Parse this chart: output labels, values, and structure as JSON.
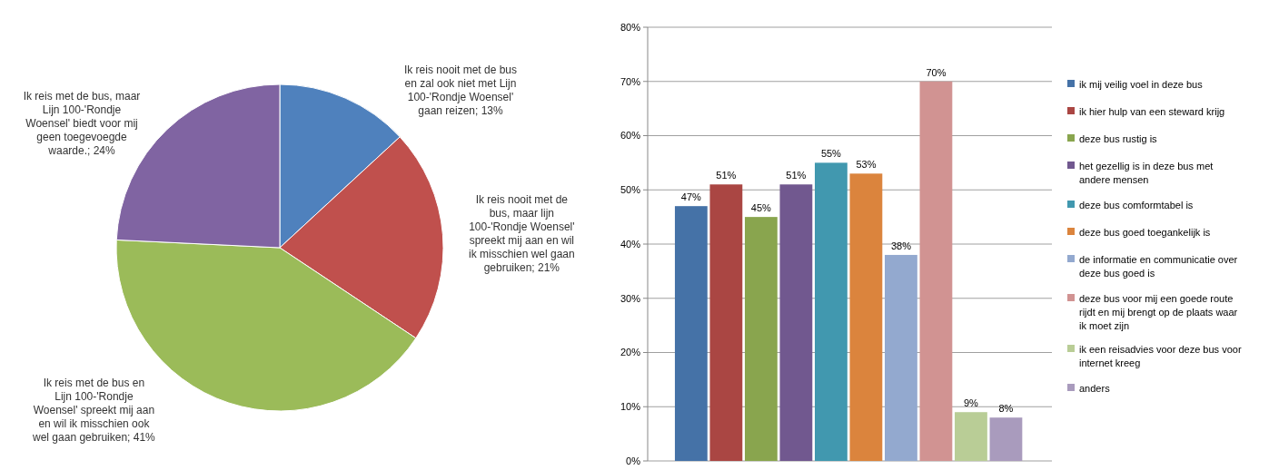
{
  "chart_data": [
    {
      "type": "pie",
      "categories": [
        "Ik reis nooit met de bus en zal ook niet met Lijn 100-'Rondje Woensel' gaan reizen",
        "Ik reis nooit met de bus, maar lijn 100-'Rondje Woensel' spreekt mij aan en wil ik misschien wel gaan gebruiken",
        "Ik reis met de bus en Lijn 100-'Rondje Woensel' spreekt mij aan en wil ik misschien ook wel gaan gebruiken",
        "Ik reis met de bus, maar Lijn 100-'Rondje Woensel' biedt voor mij geen toegevoegde waarde."
      ],
      "values": [
        13,
        21,
        41,
        24
      ],
      "colors": [
        "#4f81bd",
        "#c0504d",
        "#9bbb59",
        "#8064a2"
      ],
      "value_labels": [
        "13%",
        "21%",
        "41%",
        "24%"
      ],
      "legend": false
    },
    {
      "type": "bar",
      "categories": [
        null
      ],
      "series": [
        {
          "name": "ik mij veilig voel in deze bus",
          "color": "#4572a7",
          "values": [
            47
          ]
        },
        {
          "name": "ik hier hulp van een steward krijg",
          "color": "#aa4643",
          "values": [
            51
          ]
        },
        {
          "name": "deze bus rustig is",
          "color": "#89a54e",
          "values": [
            45
          ]
        },
        {
          "name": "het gezellig is in deze bus met andere mensen",
          "color": "#71588f",
          "values": [
            51
          ]
        },
        {
          "name": "deze bus comformtabel is",
          "color": "#4198af",
          "values": [
            55
          ]
        },
        {
          "name": "deze bus goed toegankelijk is",
          "color": "#db843d",
          "values": [
            53
          ]
        },
        {
          "name": "de informatie en communicatie over deze bus goed is",
          "color": "#93a9cf",
          "values": [
            38
          ]
        },
        {
          "name": "deze bus voor mij een goede route rijdt en mij brengt op de plaats waar ik moet zijn",
          "color": "#d19392",
          "values": [
            70
          ]
        },
        {
          "name": "ik een reisadvies voor deze bus voor internet kreeg",
          "color": "#b9cd96",
          "values": [
            9
          ]
        },
        {
          "name": "anders",
          "color": "#a99bbd",
          "values": [
            8
          ]
        }
      ],
      "value_labels": [
        "47%",
        "51%",
        "45%",
        "51%",
        "55%",
        "53%",
        "38%",
        "70%",
        "9%",
        "8%"
      ],
      "ylim": [
        0,
        80
      ],
      "yticks": [
        {
          "value": 0,
          "label": "0%"
        },
        {
          "value": 10,
          "label": "10%"
        },
        {
          "value": 20,
          "label": "20%"
        },
        {
          "value": 30,
          "label": "30%"
        },
        {
          "value": 40,
          "label": "40%"
        },
        {
          "value": 50,
          "label": "50%"
        },
        {
          "value": 60,
          "label": "60%"
        },
        {
          "value": 70,
          "label": "70%"
        },
        {
          "value": 80,
          "label": "80%"
        }
      ],
      "grid": "y",
      "legend": "right"
    }
  ]
}
